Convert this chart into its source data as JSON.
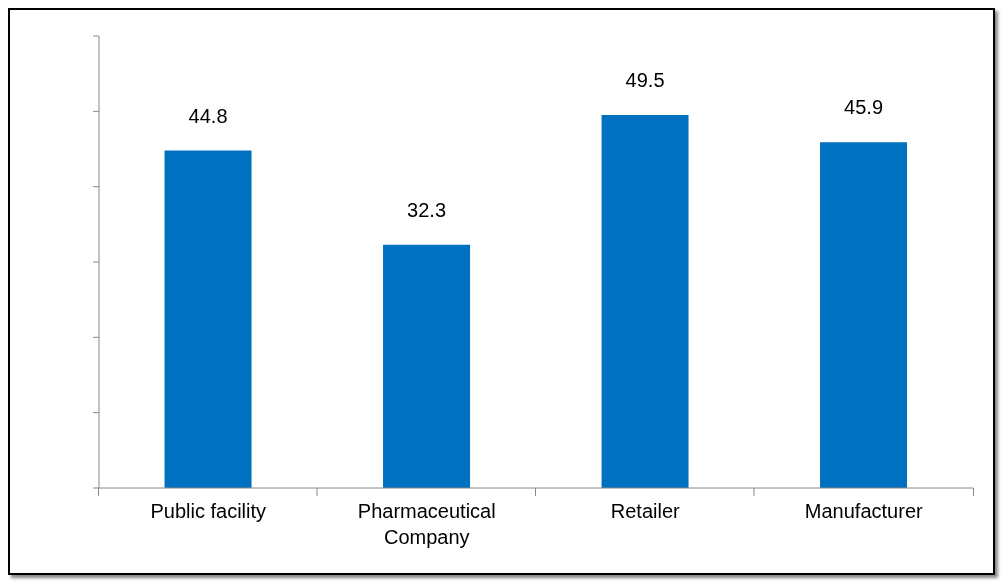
{
  "chart_data": {
    "type": "bar",
    "categories": [
      "Public facility",
      "Pharmaceutical Company",
      "Retailer",
      "Manufacturer"
    ],
    "values": [
      44.8,
      32.3,
      49.5,
      45.9
    ],
    "color": "#0070c0",
    "data_labels": true,
    "ylim": [
      0,
      60
    ],
    "yticks": [
      {
        "value": 0,
        "label": null
      },
      {
        "value": 10,
        "label": null
      },
      {
        "value": 20,
        "label": null
      },
      {
        "value": 30,
        "label": null
      },
      {
        "value": 40,
        "label": null
      },
      {
        "value": 50,
        "label": null
      },
      {
        "value": 60,
        "label": null
      }
    ],
    "grid": false,
    "legend": false
  }
}
